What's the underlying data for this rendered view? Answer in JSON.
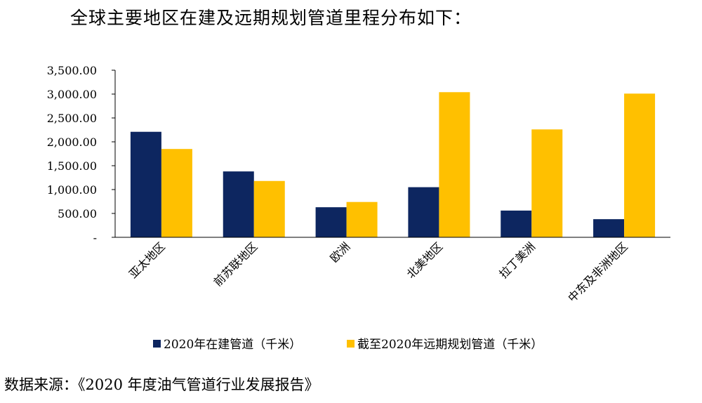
{
  "heading": "全球主要地区在建及远期规划管道里程分布如下：",
  "source": "数据来源：《2020 年度油气管道行业发展报告》",
  "colors": {
    "series1": "#0D2660",
    "series2": "#FFC000",
    "axis": "#000000"
  },
  "chart_data": {
    "type": "bar",
    "title": "",
    "xlabel": "",
    "ylabel": "",
    "ylim": [
      0,
      3500
    ],
    "yticks": [
      0,
      500,
      1000,
      1500,
      2000,
      2500,
      3000,
      3500
    ],
    "ytick_labels": [
      "-",
      "500.00",
      "1,000.00",
      "1,500.00",
      "2,000.00",
      "2,500.00",
      "3,000.00",
      "3,500.00"
    ],
    "grid": false,
    "legend": "bottom",
    "categories": [
      "亚太地区",
      "前苏联地区",
      "欧洲",
      "北美地区",
      "拉丁美洲",
      "中东及非洲地区"
    ],
    "series": [
      {
        "name": "2020年在建管道（千米）",
        "values": [
          2210,
          1380,
          630,
          1050,
          560,
          380
        ]
      },
      {
        "name": "截至2020年远期规划管道（千米）",
        "values": [
          1850,
          1180,
          740,
          3040,
          2260,
          3010
        ]
      }
    ]
  }
}
